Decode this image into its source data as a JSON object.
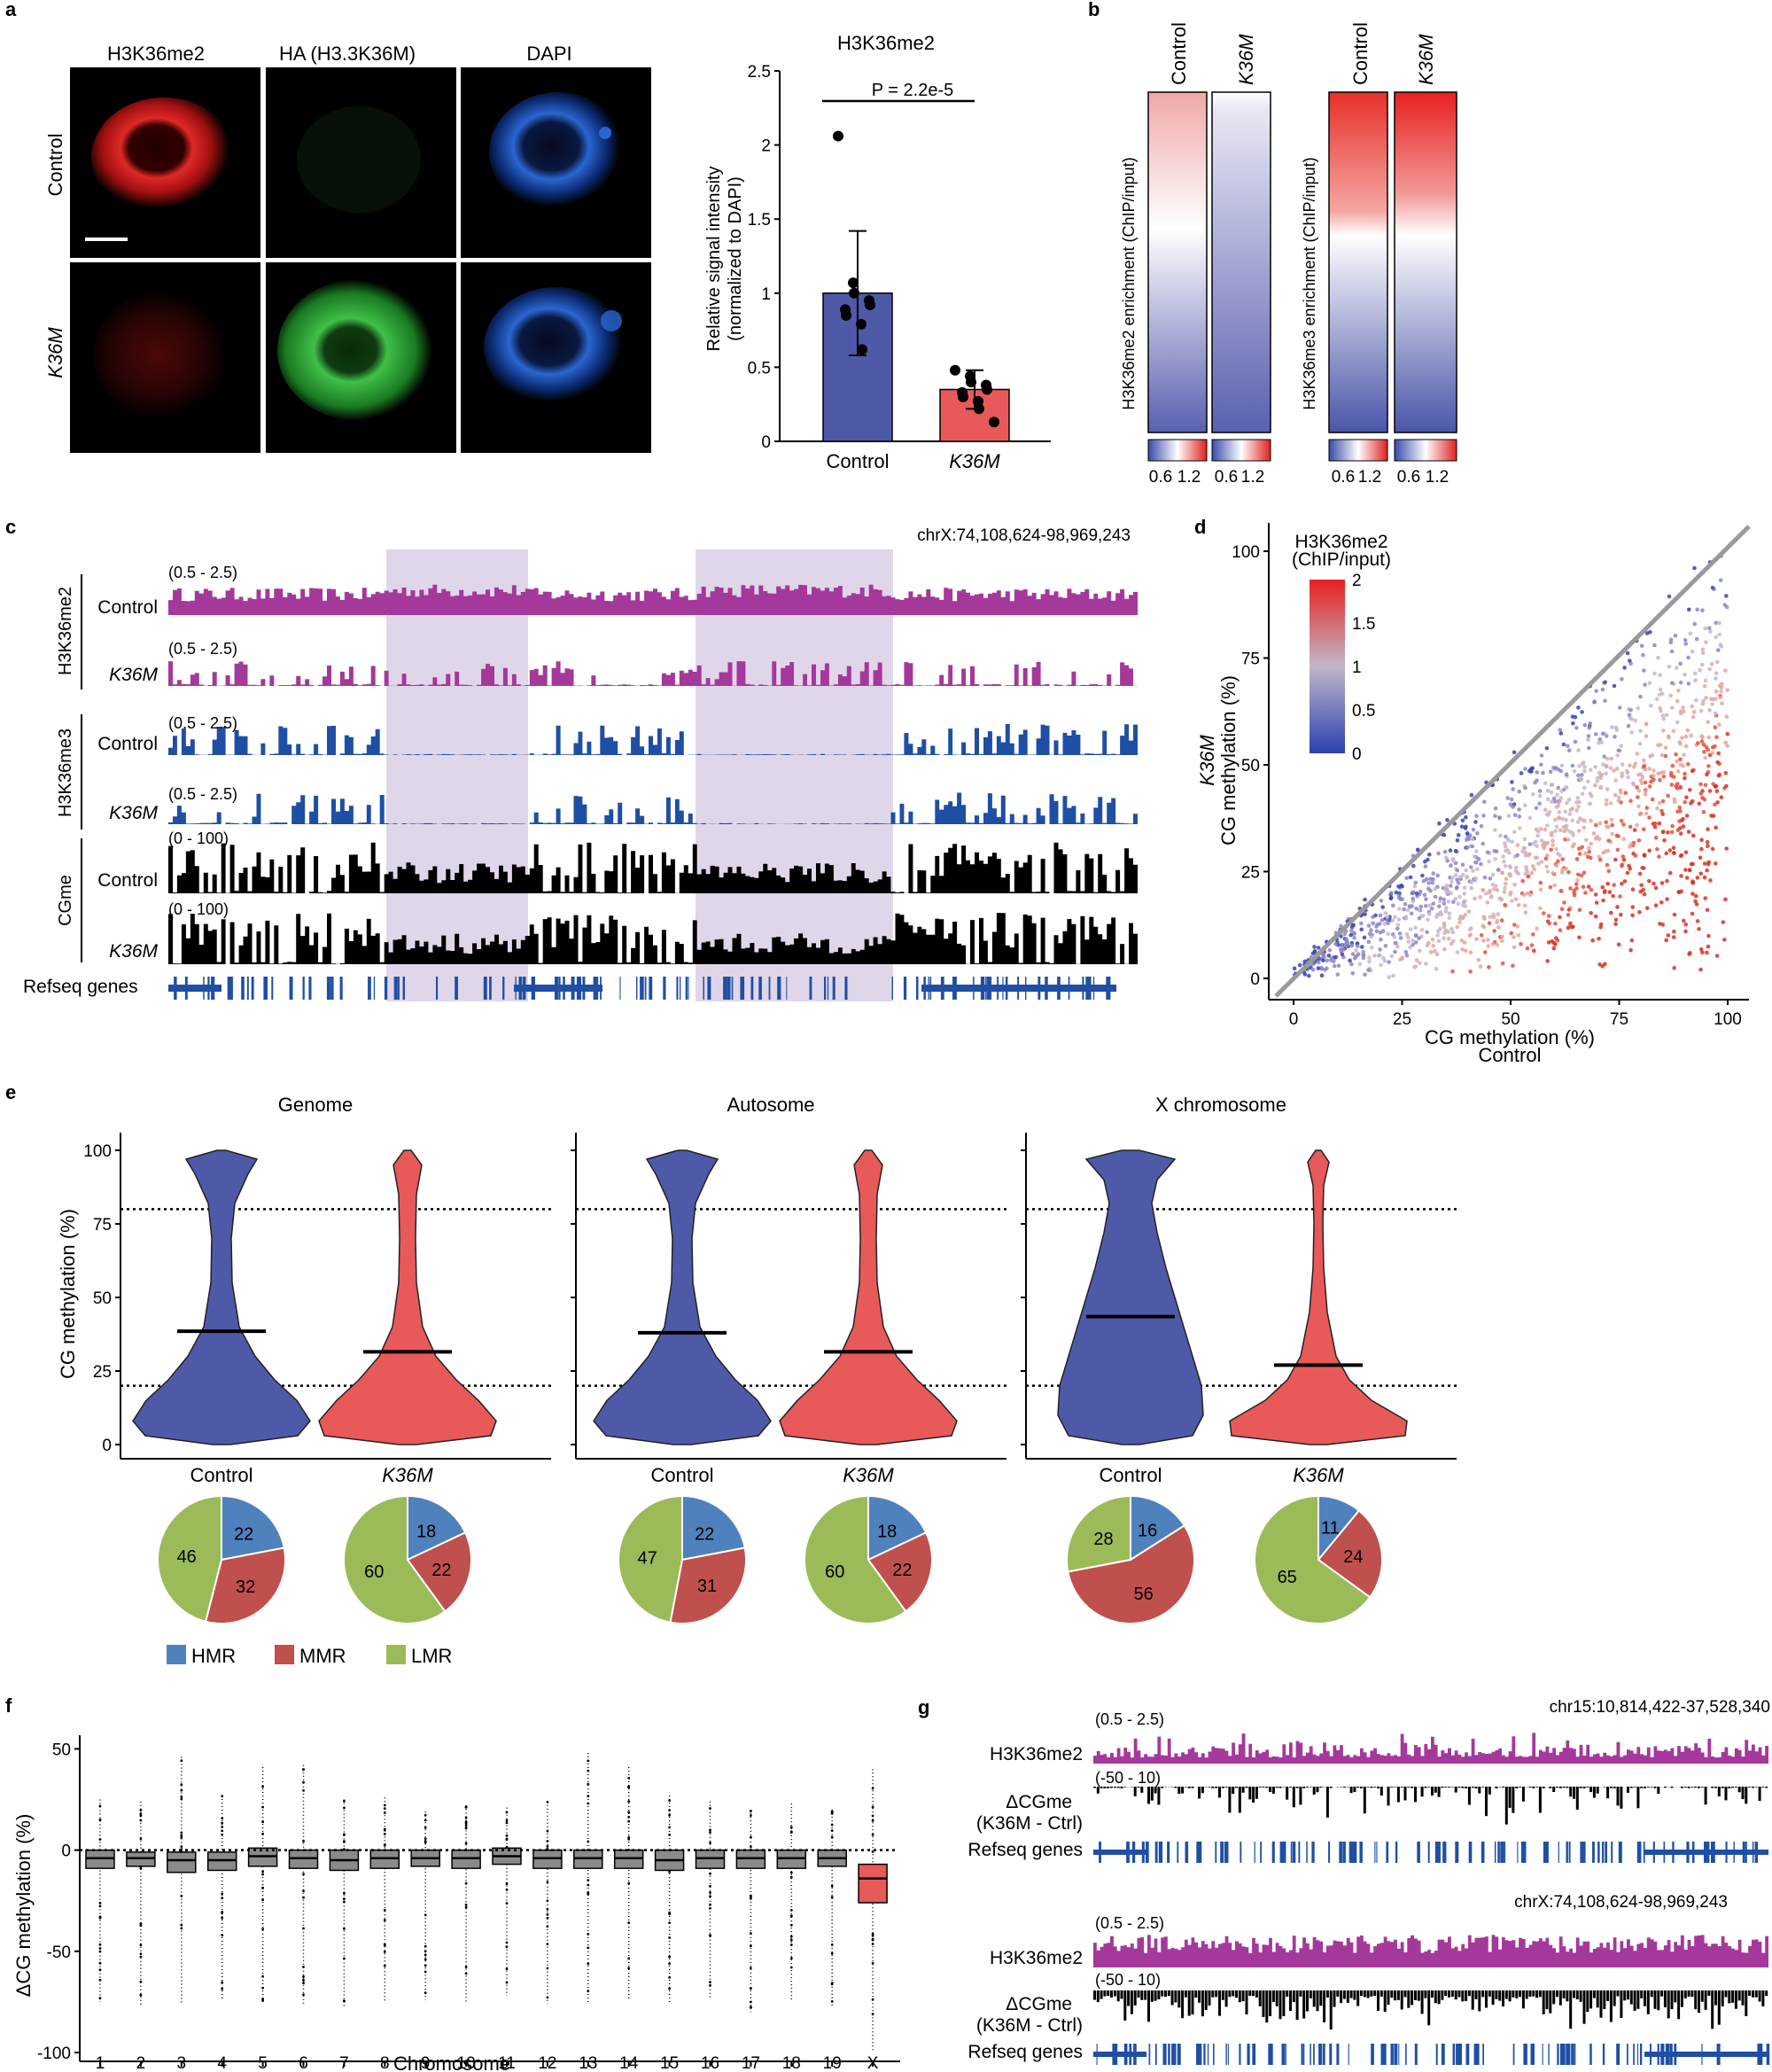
{
  "panel_labels": {
    "a": "a",
    "b": "b",
    "c": "c",
    "d": "d",
    "e": "e",
    "f": "f",
    "g": "g"
  },
  "colors": {
    "control_blue": "#4e5aa8",
    "k36m_red": "#e8595a",
    "purple": "#a5389b",
    "track_blue": "#1f4fa5",
    "hmr": "#4f81bd",
    "mmr": "#c0504d",
    "lmr": "#9bbb59",
    "shade": "#c6b4d8",
    "dapi": "#3f7fe6",
    "ha_green": "#37b844",
    "h3k36_red": "#e02020"
  },
  "panel_a": {
    "col_headers": [
      "H3K36me2",
      "HA (H3.3K36M)",
      "DAPI"
    ],
    "row_labels": [
      "Control",
      "K36M"
    ]
  },
  "chart_data": [
    {
      "id": "a_bar",
      "type": "bar",
      "title": "H3K36me2",
      "categories": [
        "Control",
        "K36M"
      ],
      "values": [
        1.0,
        0.35
      ],
      "errors": [
        0.42,
        0.13
      ],
      "points": [
        [
          2.06,
          1.07,
          1.0,
          0.95,
          0.92,
          0.89,
          0.85,
          0.79,
          0.62
        ],
        [
          0.48,
          0.44,
          0.4,
          0.38,
          0.35,
          0.33,
          0.3,
          0.27,
          0.22,
          0.13
        ]
      ],
      "ylabel": "Relative signal intensity",
      "ylabel2": "(normalized to DAPI)",
      "yticks": [
        "0",
        "0.5",
        "1",
        "1.5",
        "2",
        "2.5"
      ],
      "ylim": [
        0,
        2.5
      ],
      "annotation": "P = 2.2e-5"
    },
    {
      "id": "b_heatmap",
      "type": "heatmap",
      "groups": [
        {
          "ylabel": "H3K36me2 enrichment (ChIP/input)",
          "columns": [
            "Control",
            "K36M"
          ]
        },
        {
          "ylabel": "H3K36me3 enrichment (ChIP/input)",
          "columns": [
            "Control",
            "K36M"
          ]
        }
      ],
      "scale_labels": [
        "0.6",
        "1.2"
      ]
    },
    {
      "id": "c_tracks",
      "type": "genome-tracks",
      "region": "chrX:74,108,624-98,969,243",
      "marks": [
        "H3K36me2",
        "H3K36me3",
        "CGme"
      ],
      "conditions": [
        "Control",
        "K36M"
      ],
      "ranges": [
        "(0.5 - 2.5)",
        "(0.5 - 2.5)",
        "(0.5 - 2.5)",
        "(0.5 - 2.5)",
        "(0 - 100)",
        "(0 - 100)"
      ],
      "genes_label": "Refseq genes"
    },
    {
      "id": "d_scatter",
      "type": "scatter",
      "xlabel": "CG methylation (%)",
      "xlabel2": "Control",
      "ylabel_top": "K36M",
      "ylabel": "CG methylation (%)",
      "xticks": [
        "0",
        "25",
        "50",
        "75",
        "100"
      ],
      "yticks": [
        "0",
        "25",
        "50",
        "75",
        "100"
      ],
      "xlim": [
        0,
        100
      ],
      "ylim": [
        0,
        100
      ],
      "legend_title": "H3K36me2",
      "legend_title2": "(ChIP/input)",
      "legend_ticks": [
        "2",
        "1.5",
        "1",
        "0.5",
        "0"
      ]
    },
    {
      "id": "e_violin",
      "type": "violin",
      "ylabel": "CG methylation (%)",
      "yticks": [
        "0",
        "25",
        "50",
        "75",
        "100"
      ],
      "thresholds": [
        20,
        80
      ],
      "panels": [
        {
          "title": "Genome",
          "groups": [
            "Control",
            "K36M"
          ],
          "means": [
            38.5,
            31.5
          ],
          "pies": [
            [
              22,
              32,
              46
            ],
            [
              18,
              22,
              60
            ]
          ]
        },
        {
          "title": "Autosome",
          "groups": [
            "Control",
            "K36M"
          ],
          "means": [
            38.0,
            31.5
          ],
          "pies": [
            [
              22,
              31,
              47
            ],
            [
              18,
              22,
              60
            ]
          ]
        },
        {
          "title": "X chromosome",
          "groups": [
            "Control",
            "K36M"
          ],
          "means": [
            43.5,
            27.0
          ],
          "pies": [
            [
              16,
              56,
              28
            ],
            [
              11,
              24,
              65
            ]
          ]
        }
      ],
      "legend": [
        "HMR",
        "MMR",
        "LMR"
      ]
    },
    {
      "id": "f_box",
      "type": "box",
      "ylabel": "ΔCG methylation (%)",
      "xlabel": "Chromosome",
      "categories": [
        "1",
        "2",
        "3",
        "4",
        "5",
        "6",
        "7",
        "8",
        "9",
        "10",
        "11",
        "12",
        "13",
        "14",
        "15",
        "16",
        "17",
        "18",
        "19",
        "X"
      ],
      "medians": [
        -4,
        -4,
        -5,
        -5,
        -3,
        -4,
        -5,
        -4,
        -4,
        -4,
        -3,
        -4,
        -4,
        -4,
        -5,
        -4,
        -4,
        -4,
        -4,
        -14
      ],
      "q1": [
        -9,
        -8,
        -11,
        -10,
        -8,
        -9,
        -10,
        -9,
        -8,
        -9,
        -7,
        -9,
        -9,
        -9,
        -10,
        -9,
        -9,
        -9,
        -8,
        -26
      ],
      "q3": [
        0,
        -1,
        -1,
        -1,
        1,
        0,
        0,
        0,
        0,
        0,
        1,
        0,
        0,
        0,
        0,
        0,
        0,
        0,
        0,
        -7
      ],
      "whisker_low": [
        -75,
        -77,
        -76,
        -74,
        -75,
        -76,
        -77,
        -75,
        -74,
        -75,
        -72,
        -76,
        -76,
        -74,
        -76,
        -74,
        -80,
        -74,
        -77,
        -100
      ],
      "whisker_high": [
        25,
        24,
        46,
        27,
        41,
        42,
        25,
        26,
        19,
        22,
        21,
        24,
        48,
        41,
        27,
        24,
        20,
        23,
        20,
        40
      ],
      "yticks": [
        "50",
        "0",
        "-50",
        "-100"
      ],
      "ylim": [
        -100,
        55
      ]
    },
    {
      "id": "g_tracks",
      "type": "genome-tracks",
      "blocks": [
        {
          "region": "chr15:10,814,422-37,528,340",
          "range1": "(0.5 - 2.5)",
          "range2": "(-50 - 10)"
        },
        {
          "region": "chrX:74,108,624-98,969,243",
          "range1": "(0.5 - 2.5)",
          "range2": "(-50 - 10)"
        }
      ],
      "labels": [
        "H3K36me2",
        "ΔCGme",
        "(K36M - Ctrl)",
        "Refseq genes"
      ]
    }
  ]
}
